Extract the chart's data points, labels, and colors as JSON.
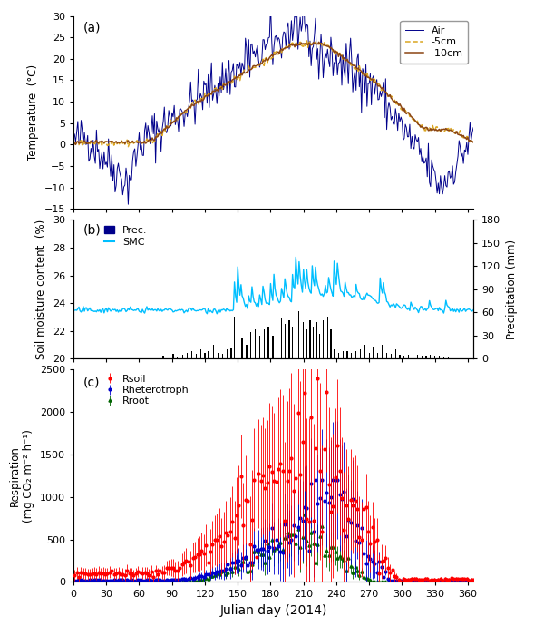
{
  "panel_a": {
    "ylabel": "Temperature  (°C)",
    "ylim": [
      -15,
      30
    ],
    "yticks": [
      -15,
      -10,
      -5,
      0,
      5,
      10,
      15,
      20,
      25,
      30
    ],
    "label_a": "(a)",
    "legend_air": "Air",
    "legend_5cm": "-5cm",
    "legend_10cm": "-10cm",
    "color_air": "#00008B",
    "color_5cm": "#DAA520",
    "color_10cm": "#8B4513"
  },
  "panel_b": {
    "ylabel_left": "Soil moisture content  (%)",
    "ylabel_right": "Precipitation (mm)",
    "ylim_left": [
      20,
      30
    ],
    "ylim_right": [
      0,
      180
    ],
    "yticks_left": [
      20,
      22,
      24,
      26,
      28,
      30
    ],
    "yticks_right": [
      0,
      30,
      60,
      90,
      120,
      150,
      180
    ],
    "label_b": "(b)",
    "legend_prec": "Prec.",
    "legend_smc": "SMC",
    "color_prec": "#00008B",
    "color_smc": "#00BFFF"
  },
  "panel_c": {
    "ylabel": "Respiration\n(mg CO₂ m⁻² h⁻¹)",
    "ylim": [
      0,
      2500
    ],
    "yticks": [
      0,
      500,
      1000,
      1500,
      2000,
      2500
    ],
    "xlabel": "Julian day (2014)",
    "label_c": "(c)",
    "legend_rsoil": "Rsoil",
    "legend_rheterotroph": "Rheterotroph",
    "legend_rroot": "Rroot",
    "color_rsoil": "#FF0000",
    "color_rheterotroph": "#0000CD",
    "color_rroot": "#006400",
    "xticks": [
      0,
      30,
      60,
      90,
      120,
      150,
      180,
      210,
      240,
      270,
      300,
      330,
      360
    ],
    "xlim": [
      0,
      365
    ]
  }
}
